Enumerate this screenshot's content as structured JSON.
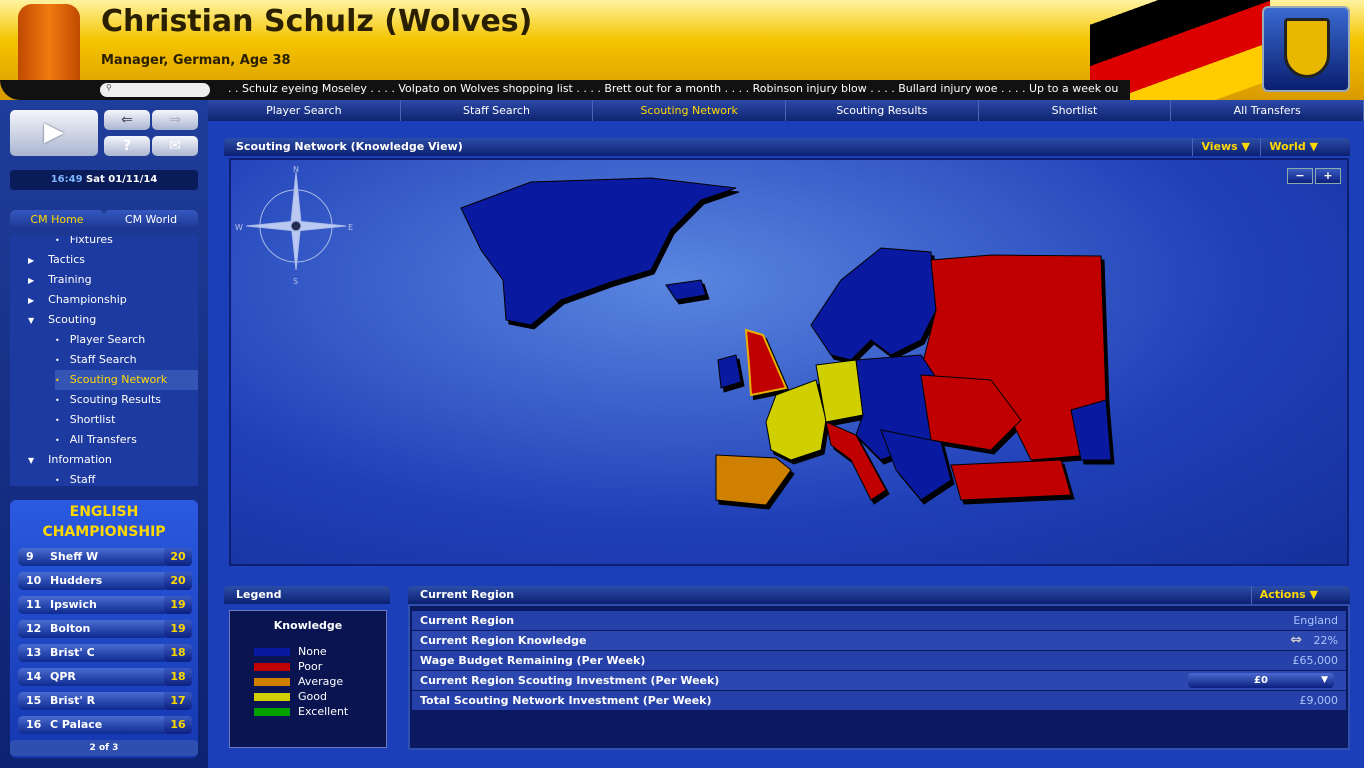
{
  "header": {
    "title": "Christian Schulz (Wolves)",
    "subtitle": "Manager, German, Age 38",
    "ticker": ". . Schulz eyeing Moseley  . . . .  Volpato on Wolves shopping list  . . . .  Brett out for a month  . . . .  Robinson injury blow  . . . .  Bullard injury woe  . . . .  Up to a week out for Bo"
  },
  "tabs": [
    "Player Search",
    "Staff Search",
    "Scouting Network",
    "Scouting Results",
    "Shortlist",
    "All Transfers"
  ],
  "clock": {
    "time": "16:49",
    "date": "Sat 01/11/14"
  },
  "cm_tabs": [
    "CM Home",
    "CM World"
  ],
  "nav": [
    {
      "label": "Fixtures",
      "level": 1
    },
    {
      "label": "Tactics",
      "level": 0
    },
    {
      "label": "Training",
      "level": 0
    },
    {
      "label": "Championship",
      "level": 0
    },
    {
      "label": "Scouting",
      "level": 0,
      "open": true
    },
    {
      "label": "Player Search",
      "level": 1
    },
    {
      "label": "Staff Search",
      "level": 1
    },
    {
      "label": "Scouting Network",
      "level": 1,
      "selected": true
    },
    {
      "label": "Scouting Results",
      "level": 1
    },
    {
      "label": "Shortlist",
      "level": 1
    },
    {
      "label": "All Transfers",
      "level": 1
    },
    {
      "label": "Information",
      "level": 0,
      "open": true
    },
    {
      "label": "Staff",
      "level": 1
    }
  ],
  "league": {
    "title1": "ENGLISH",
    "title2": "CHAMPIONSHIP",
    "rows": [
      {
        "pos": "9",
        "team": "Sheff W",
        "pts": "20"
      },
      {
        "pos": "10",
        "team": "Hudders",
        "pts": "20"
      },
      {
        "pos": "11",
        "team": "Ipswich",
        "pts": "19"
      },
      {
        "pos": "12",
        "team": "Bolton",
        "pts": "19"
      },
      {
        "pos": "13",
        "team": "Brist' C",
        "pts": "18"
      },
      {
        "pos": "14",
        "team": "QPR",
        "pts": "18"
      },
      {
        "pos": "15",
        "team": "Brist' R",
        "pts": "17"
      },
      {
        "pos": "16",
        "team": "C Palace",
        "pts": "16"
      }
    ],
    "page": "2 of 3"
  },
  "map_panel": {
    "title": "Scouting Network (Knowledge View)",
    "views": "Views",
    "world": "World",
    "compass": [
      "N",
      "E",
      "S",
      "W"
    ]
  },
  "legend": {
    "title": "Legend",
    "heading": "Knowledge",
    "items": [
      {
        "label": "None",
        "color": "#0a1aa0"
      },
      {
        "label": "Poor",
        "color": "#c00000"
      },
      {
        "label": "Average",
        "color": "#d08000"
      },
      {
        "label": "Good",
        "color": "#d0d000"
      },
      {
        "label": "Excellent",
        "color": "#00a000"
      }
    ]
  },
  "region": {
    "title": "Current Region",
    "actions": "Actions",
    "rows": [
      {
        "label": "Current Region",
        "value": "England"
      },
      {
        "label": "Current Region Knowledge",
        "value": "22%"
      },
      {
        "label": "Wage Budget Remaining (Per Week)",
        "value": "£65,000"
      },
      {
        "label": "Current Region Scouting Investment (Per Week)",
        "value": "£0"
      },
      {
        "label": "Total Scouting Network Investment (Per Week)",
        "value": "£9,000"
      }
    ]
  }
}
